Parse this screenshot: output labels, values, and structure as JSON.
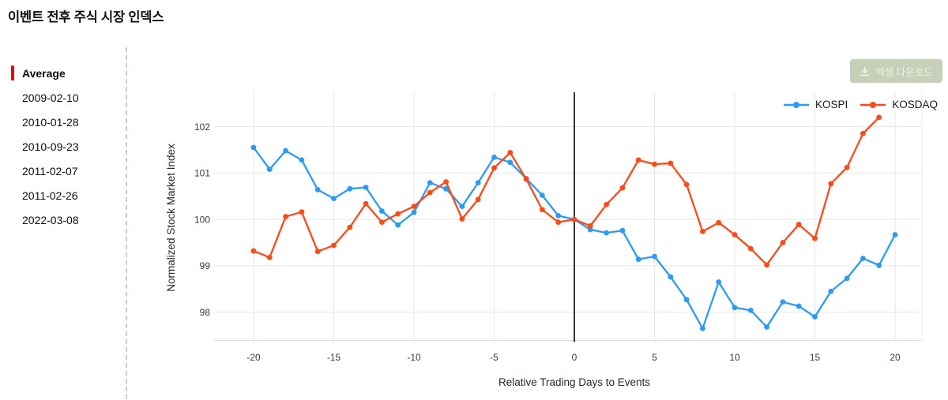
{
  "page_title": "이벤트 전후 주식 시장 인덱스",
  "sidebar": {
    "items": [
      {
        "label": "Average",
        "active": true
      },
      {
        "label": "2009-02-10",
        "active": false
      },
      {
        "label": "2010-01-28",
        "active": false
      },
      {
        "label": "2010-09-23",
        "active": false
      },
      {
        "label": "2011-02-07",
        "active": false
      },
      {
        "label": "2011-02-26",
        "active": false
      },
      {
        "label": "2022-03-08",
        "active": false
      }
    ]
  },
  "toolbar": {
    "download_label": "엑셀 다운로드",
    "download_icon": "download-icon"
  },
  "colors": {
    "kospi_line": "#2e9af3",
    "kosdaq_line": "#fa4b19",
    "active_item_bar": "#ee0000",
    "download_button_bg": "#c6d0b8",
    "download_button_fg": "#eef1e6",
    "event_line": "#141414",
    "gridline": "#e7e7e7"
  },
  "chart_data": {
    "type": "line",
    "title": "",
    "xlabel": "Relative Trading Days to Events",
    "ylabel": "Normalized Stock Market Index",
    "x_ticks": [
      -20,
      -15,
      -10,
      -5,
      0,
      5,
      10,
      15,
      20
    ],
    "y_ticks": [
      98,
      99,
      100,
      101,
      102
    ],
    "xlim": [
      -22.4,
      21.7
    ],
    "ylim": [
      97.4,
      102.72
    ],
    "grid": true,
    "legend_position": "top-right",
    "event_line_x": 0,
    "series": [
      {
        "name": "KOSPI",
        "color": "#2e9af3",
        "x": [
          -20,
          -19,
          -18,
          -17,
          -16,
          -15,
          -14,
          -13,
          -12,
          -11,
          -10,
          -9,
          -8,
          -7,
          -6,
          -5,
          -4,
          -3,
          -2,
          -1,
          0,
          1,
          2,
          3,
          4,
          5,
          6,
          7,
          8,
          9,
          10,
          11,
          12,
          13,
          14,
          15,
          16,
          17,
          18,
          19,
          20
        ],
        "values": [
          101.55,
          101.08,
          101.48,
          101.28,
          100.64,
          100.45,
          100.66,
          100.69,
          100.18,
          99.88,
          100.15,
          100.79,
          100.66,
          100.28,
          100.79,
          101.34,
          101.23,
          100.88,
          100.52,
          100.08,
          100.0,
          99.78,
          99.71,
          99.76,
          99.14,
          99.2,
          98.76,
          98.27,
          97.65,
          98.65,
          98.1,
          98.04,
          97.68,
          98.22,
          98.13,
          97.9,
          98.45,
          98.73,
          99.16,
          99.01,
          99.67
        ]
      },
      {
        "name": "KOSDAQ",
        "color": "#fa4b19",
        "x": [
          -20,
          -19,
          -18,
          -17,
          -16,
          -15,
          -14,
          -13,
          -12,
          -11,
          -10,
          -9,
          -8,
          -7,
          -6,
          -5,
          -4,
          -3,
          -2,
          -1,
          0,
          1,
          2,
          3,
          4,
          5,
          6,
          7,
          8,
          9,
          10,
          11,
          12,
          13,
          14,
          15,
          16,
          17,
          18,
          19
        ],
        "values": [
          99.32,
          99.18,
          100.06,
          100.16,
          99.31,
          99.44,
          99.83,
          100.34,
          99.94,
          100.12,
          100.28,
          100.58,
          100.81,
          100.01,
          100.43,
          101.11,
          101.44,
          100.87,
          100.21,
          99.94,
          100.0,
          99.86,
          100.32,
          100.68,
          101.28,
          101.19,
          101.21,
          100.75,
          99.74,
          99.93,
          99.67,
          99.37,
          99.02,
          99.5,
          99.89,
          99.59,
          100.77,
          101.12,
          101.85,
          102.2
        ]
      }
    ]
  }
}
